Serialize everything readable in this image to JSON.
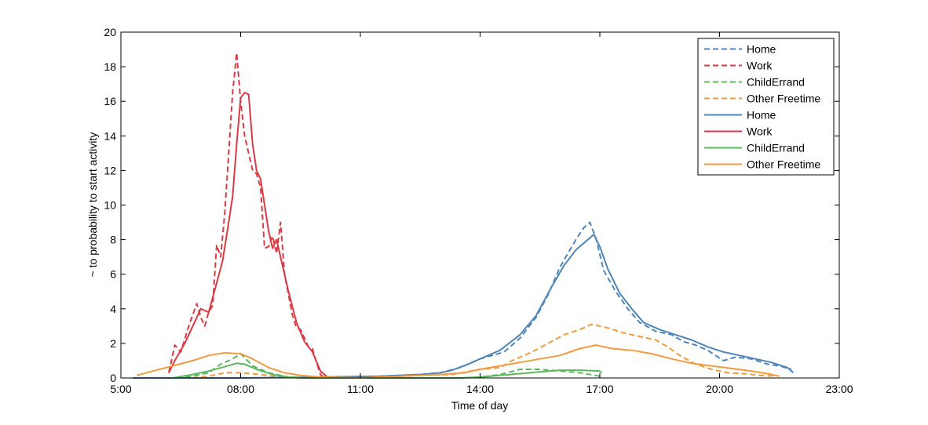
{
  "chart_data": {
    "type": "line",
    "title": "",
    "xlabel": "Time of day",
    "ylabel": "~ to probability to start activity",
    "xlim": [
      5,
      23
    ],
    "ylim": [
      0,
      20
    ],
    "x_ticks": [
      {
        "value": 5,
        "label": "5:00"
      },
      {
        "value": 8,
        "label": "08:00"
      },
      {
        "value": 11,
        "label": "11:00"
      },
      {
        "value": 14,
        "label": "14:00"
      },
      {
        "value": 17,
        "label": "17:00"
      },
      {
        "value": 20,
        "label": "20:00"
      },
      {
        "value": 23,
        "label": "23:00"
      }
    ],
    "y_ticks": [
      0,
      2,
      4,
      6,
      8,
      10,
      12,
      14,
      16,
      18,
      20
    ],
    "grid": false,
    "legend_position": "top-right",
    "series": [
      {
        "name": "Home",
        "style": "dashed",
        "color": "#4f86b8",
        "points": [
          [
            10.8,
            0
          ],
          [
            11.5,
            0.1
          ],
          [
            12,
            0.15
          ],
          [
            12.5,
            0.2
          ],
          [
            13,
            0.3
          ],
          [
            13.5,
            0.6
          ],
          [
            14,
            1.1
          ],
          [
            14.3,
            1.3
          ],
          [
            14.6,
            1.5
          ],
          [
            15,
            2.3
          ],
          [
            15.4,
            3.5
          ],
          [
            15.7,
            4.8
          ],
          [
            16,
            6.4
          ],
          [
            16.2,
            7.2
          ],
          [
            16.4,
            8
          ],
          [
            16.6,
            8.7
          ],
          [
            16.75,
            9
          ],
          [
            16.9,
            8.1
          ],
          [
            17.1,
            6.2
          ],
          [
            17.4,
            5
          ],
          [
            17.7,
            4
          ],
          [
            18,
            3.2
          ],
          [
            18.4,
            2.7
          ],
          [
            18.8,
            2.5
          ],
          [
            19.1,
            2.1
          ],
          [
            19.4,
            1.9
          ],
          [
            19.7,
            1.6
          ],
          [
            19.9,
            1.3
          ],
          [
            20.1,
            1.0
          ],
          [
            20.4,
            1.2
          ],
          [
            20.8,
            1.1
          ],
          [
            21.2,
            0.8
          ],
          [
            21.5,
            0.7
          ],
          [
            21.8,
            0.5
          ]
        ]
      },
      {
        "name": "Work",
        "style": "dashed",
        "color": "#d93a44",
        "points": [
          [
            6.2,
            0.3
          ],
          [
            6.35,
            1.9
          ],
          [
            6.5,
            1.5
          ],
          [
            6.7,
            3
          ],
          [
            6.9,
            4.3
          ],
          [
            7.0,
            3.5
          ],
          [
            7.1,
            3.0
          ],
          [
            7.2,
            3.8
          ],
          [
            7.3,
            4.2
          ],
          [
            7.4,
            7.7
          ],
          [
            7.5,
            7
          ],
          [
            7.6,
            9.5
          ],
          [
            7.7,
            13
          ],
          [
            7.8,
            16.5
          ],
          [
            7.9,
            18.8
          ],
          [
            8.0,
            16
          ],
          [
            8.1,
            14
          ],
          [
            8.2,
            13
          ],
          [
            8.3,
            12
          ],
          [
            8.4,
            11.8
          ],
          [
            8.5,
            11
          ],
          [
            8.6,
            7.5
          ],
          [
            8.7,
            7.6
          ],
          [
            8.8,
            8.2
          ],
          [
            8.9,
            7.2
          ],
          [
            9.0,
            9
          ],
          [
            9.1,
            6
          ],
          [
            9.2,
            4.8
          ],
          [
            9.3,
            3.6
          ],
          [
            9.4,
            2.9
          ],
          [
            9.5,
            2.8
          ],
          [
            9.6,
            2.3
          ],
          [
            9.7,
            1.8
          ],
          [
            9.8,
            1.7
          ],
          [
            9.9,
            0.9
          ],
          [
            10.0,
            0.2
          ],
          [
            10.1,
            0
          ]
        ]
      },
      {
        "name": "ChildErrand",
        "style": "dashed",
        "color": "#5cb85c",
        "points": [
          [
            6.4,
            0
          ],
          [
            6.8,
            0.1
          ],
          [
            7.2,
            0.3
          ],
          [
            7.5,
            0.8
          ],
          [
            7.8,
            1.1
          ],
          [
            8.0,
            1.4
          ],
          [
            8.3,
            0.7
          ],
          [
            8.7,
            0.3
          ],
          [
            9.2,
            0.05
          ],
          [
            9.6,
            0
          ],
          [
            13.5,
            0
          ],
          [
            14.0,
            0.05
          ],
          [
            14.5,
            0.2
          ],
          [
            15.0,
            0.5
          ],
          [
            15.5,
            0.5
          ],
          [
            16.0,
            0.4
          ],
          [
            16.5,
            0.3
          ],
          [
            17.0,
            0.1
          ]
        ]
      },
      {
        "name": "Other Freetime",
        "style": "dashed",
        "color": "#f39a3c",
        "points": [
          [
            6.8,
            0
          ],
          [
            7.2,
            0.1
          ],
          [
            7.6,
            0.3
          ],
          [
            8.0,
            0.3
          ],
          [
            8.5,
            0.2
          ],
          [
            9.0,
            0.05
          ],
          [
            9.5,
            0
          ],
          [
            10.5,
            0
          ],
          [
            11.5,
            0.05
          ],
          [
            12.5,
            0.15
          ],
          [
            13.3,
            0.2
          ],
          [
            14.0,
            0.5
          ],
          [
            14.5,
            0.6
          ],
          [
            14.8,
            1.0
          ],
          [
            15.3,
            1.5
          ],
          [
            15.7,
            2.0
          ],
          [
            16.1,
            2.5
          ],
          [
            16.5,
            2.8
          ],
          [
            16.8,
            3.1
          ],
          [
            17.2,
            2.9
          ],
          [
            17.6,
            2.6
          ],
          [
            18.0,
            2.4
          ],
          [
            18.4,
            2.2
          ],
          [
            18.7,
            1.8
          ],
          [
            19.0,
            1.3
          ],
          [
            19.4,
            0.8
          ],
          [
            19.8,
            0.5
          ],
          [
            20.2,
            0.3
          ],
          [
            20.6,
            0.25
          ],
          [
            21.0,
            0.15
          ],
          [
            21.4,
            0.1
          ]
        ]
      },
      {
        "name": "Home",
        "style": "solid",
        "color": "#4f86b8",
        "points": [
          [
            5.3,
            0
          ],
          [
            8,
            0
          ],
          [
            11.5,
            0.1
          ],
          [
            12.5,
            0.2
          ],
          [
            13,
            0.3
          ],
          [
            13.3,
            0.45
          ],
          [
            13.7,
            0.8
          ],
          [
            14,
            1.1
          ],
          [
            14.5,
            1.6
          ],
          [
            15,
            2.5
          ],
          [
            15.4,
            3.6
          ],
          [
            15.8,
            5.3
          ],
          [
            16.1,
            6.5
          ],
          [
            16.4,
            7.4
          ],
          [
            16.7,
            8.0
          ],
          [
            16.85,
            8.3
          ],
          [
            17.0,
            7.6
          ],
          [
            17.2,
            6.3
          ],
          [
            17.5,
            4.9
          ],
          [
            17.8,
            4.0
          ],
          [
            18.1,
            3.2
          ],
          [
            18.5,
            2.8
          ],
          [
            18.9,
            2.5
          ],
          [
            19.3,
            2.2
          ],
          [
            19.7,
            1.8
          ],
          [
            20.1,
            1.5
          ],
          [
            20.5,
            1.3
          ],
          [
            20.9,
            1.1
          ],
          [
            21.3,
            0.9
          ],
          [
            21.7,
            0.6
          ],
          [
            21.85,
            0.3
          ]
        ]
      },
      {
        "name": "Work",
        "style": "solid",
        "color": "#d93a44",
        "points": [
          [
            6.2,
            0.3
          ],
          [
            6.35,
            1
          ],
          [
            6.6,
            2
          ],
          [
            6.8,
            3
          ],
          [
            7.0,
            4.0
          ],
          [
            7.2,
            3.8
          ],
          [
            7.4,
            5.5
          ],
          [
            7.55,
            6.8
          ],
          [
            7.7,
            9
          ],
          [
            7.8,
            10.5
          ],
          [
            7.9,
            13.5
          ],
          [
            8.0,
            16.2
          ],
          [
            8.1,
            16.5
          ],
          [
            8.2,
            16.4
          ],
          [
            8.3,
            13.5
          ],
          [
            8.4,
            12
          ],
          [
            8.5,
            11.5
          ],
          [
            8.6,
            10
          ],
          [
            8.7,
            8.5
          ],
          [
            8.8,
            7.5
          ],
          [
            8.9,
            8.0
          ],
          [
            9.0,
            7.0
          ],
          [
            9.2,
            5
          ],
          [
            9.4,
            3.2
          ],
          [
            9.6,
            2.1
          ],
          [
            9.8,
            1.5
          ],
          [
            10.0,
            0.4
          ],
          [
            10.2,
            0
          ]
        ]
      },
      {
        "name": "ChildErrand",
        "style": "solid",
        "color": "#5cb85c",
        "points": [
          [
            6.3,
            0
          ],
          [
            6.8,
            0.2
          ],
          [
            7.2,
            0.4
          ],
          [
            7.6,
            0.65
          ],
          [
            7.9,
            0.85
          ],
          [
            8.1,
            0.8
          ],
          [
            8.4,
            0.5
          ],
          [
            8.8,
            0.2
          ],
          [
            9.2,
            0.05
          ],
          [
            9.6,
            0
          ],
          [
            13.5,
            0
          ],
          [
            14.0,
            0.05
          ],
          [
            14.5,
            0.15
          ],
          [
            15.0,
            0.25
          ],
          [
            15.5,
            0.35
          ],
          [
            16.0,
            0.45
          ],
          [
            16.5,
            0.45
          ],
          [
            17.0,
            0.4
          ],
          [
            17.05,
            0.3
          ]
        ]
      },
      {
        "name": "Other Freetime",
        "style": "solid",
        "color": "#f39a3c",
        "points": [
          [
            5.4,
            0.15
          ],
          [
            5.8,
            0.4
          ],
          [
            6.3,
            0.7
          ],
          [
            6.8,
            1.0
          ],
          [
            7.2,
            1.3
          ],
          [
            7.6,
            1.45
          ],
          [
            8.0,
            1.4
          ],
          [
            8.3,
            1.1
          ],
          [
            8.7,
            0.6
          ],
          [
            9.1,
            0.3
          ],
          [
            9.5,
            0.15
          ],
          [
            10.0,
            0.05
          ],
          [
            11.0,
            0
          ],
          [
            12.0,
            0.1
          ],
          [
            13.0,
            0.2
          ],
          [
            13.6,
            0.3
          ],
          [
            14.0,
            0.5
          ],
          [
            14.5,
            0.7
          ],
          [
            15.0,
            0.9
          ],
          [
            15.5,
            1.1
          ],
          [
            16.0,
            1.3
          ],
          [
            16.5,
            1.7
          ],
          [
            16.9,
            1.9
          ],
          [
            17.3,
            1.7
          ],
          [
            17.8,
            1.6
          ],
          [
            18.3,
            1.4
          ],
          [
            18.8,
            1.1
          ],
          [
            19.3,
            0.85
          ],
          [
            19.8,
            0.7
          ],
          [
            20.3,
            0.55
          ],
          [
            20.8,
            0.4
          ],
          [
            21.2,
            0.25
          ],
          [
            21.5,
            0.1
          ]
        ]
      }
    ]
  }
}
